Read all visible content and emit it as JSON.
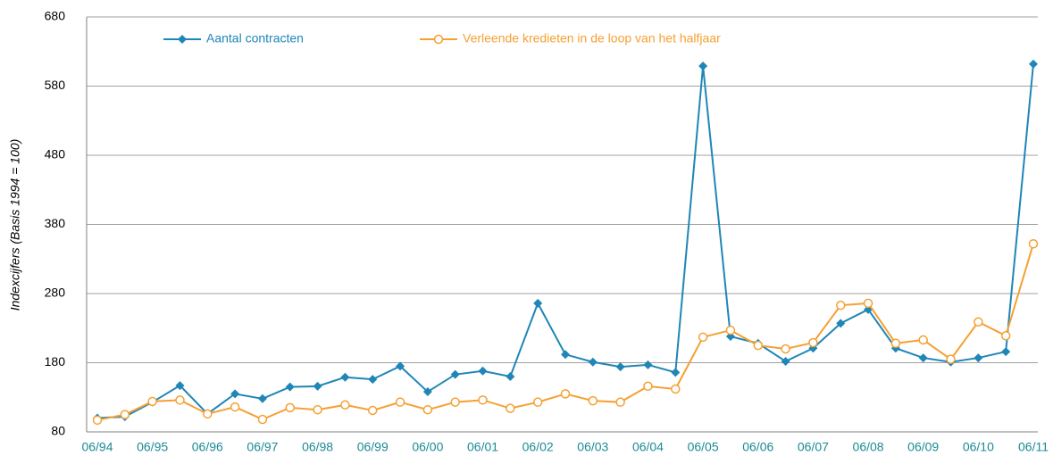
{
  "chart_data": {
    "type": "line",
    "ylabel": "Indexcijfers (Basis 1994 = 100)",
    "categories": [
      "06/94",
      null,
      "06/95",
      null,
      "06/96",
      null,
      "06/97",
      null,
      "06/98",
      null,
      "06/99",
      null,
      "06/00",
      null,
      "06/01",
      null,
      "06/02",
      null,
      "06/03",
      null,
      "06/04",
      null,
      "06/05",
      null,
      "06/06",
      null,
      "06/07",
      null,
      "06/08",
      null,
      "06/09",
      null,
      "06/10",
      null,
      "06/11"
    ],
    "series": [
      {
        "name": "Aantal contracten",
        "color": "#1f86b8",
        "marker": "diamond",
        "values": [
          100,
          102,
          123,
          147,
          106,
          135,
          128,
          145,
          146,
          159,
          156,
          175,
          138,
          163,
          168,
          160,
          266,
          192,
          181,
          174,
          177,
          166,
          609,
          218,
          208,
          182,
          201,
          237,
          257,
          201,
          187,
          181,
          187,
          196,
          612
        ]
      },
      {
        "name": "Verleende kredieten in de loop van het halfjaar",
        "color": "#f5a033",
        "marker": "circle",
        "values": [
          97,
          105,
          124,
          126,
          106,
          116,
          98,
          115,
          112,
          119,
          111,
          123,
          112,
          123,
          126,
          114,
          123,
          135,
          125,
          123,
          146,
          142,
          217,
          227,
          205,
          200,
          209,
          263,
          266,
          208,
          213,
          185,
          239,
          219,
          352
        ]
      }
    ],
    "ylim": [
      80,
      680
    ],
    "yticks": [
      80,
      180,
      280,
      380,
      480,
      580,
      680
    ],
    "grid": true
  }
}
